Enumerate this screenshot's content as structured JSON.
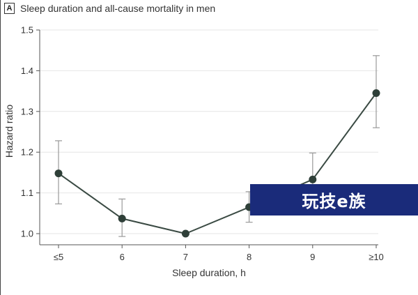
{
  "panel": {
    "letter": "A",
    "title": "Sleep duration and all-cause mortality in men"
  },
  "chart_data": {
    "type": "line",
    "title": "Sleep duration and all-cause mortality in men",
    "xlabel": "Sleep duration, h",
    "ylabel": "Hazard ratio",
    "categories": [
      "≤5",
      "6",
      "7",
      "8",
      "9",
      "≥10"
    ],
    "series": [
      {
        "values": [
          1.148,
          1.037,
          1.0,
          1.065,
          1.133,
          1.345
        ],
        "ci_lower": [
          1.073,
          0.993,
          1.0,
          1.028,
          1.078,
          1.26
        ],
        "ci_upper": [
          1.228,
          1.085,
          1.0,
          1.103,
          1.198,
          1.437
        ]
      }
    ],
    "ylim": [
      1.0,
      1.5
    ],
    "yticks": [
      "1.0",
      "1.1",
      "1.2",
      "1.3",
      "1.4",
      "1.5"
    ],
    "grid": "horizontal",
    "colors": {
      "line": "#3a4a43",
      "marker": "#2e3f38",
      "errorbar": "#999999",
      "grid": "#e6e6e6"
    }
  },
  "watermark": {
    "text": "玩技e族",
    "background": "#1a2b7a"
  }
}
